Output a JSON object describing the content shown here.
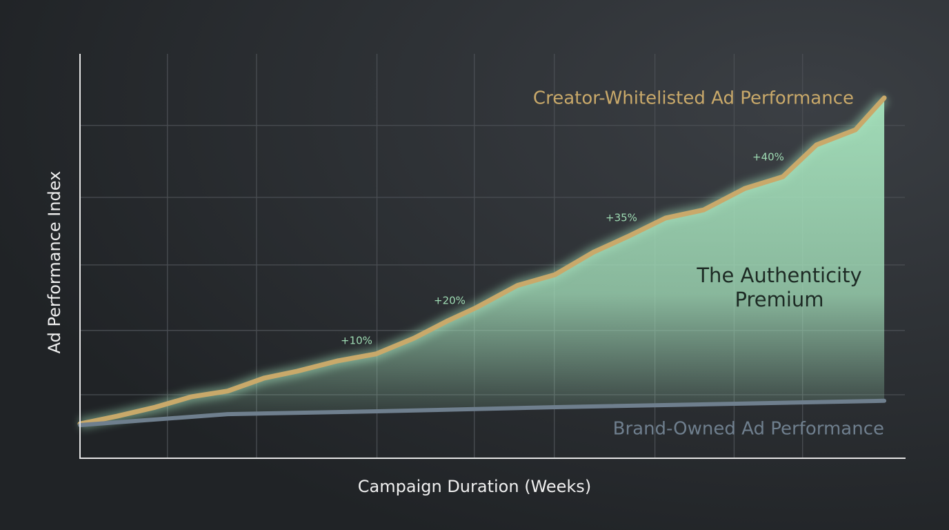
{
  "chart_data": {
    "type": "line",
    "x_label": "Campaign Duration (Weeks)",
    "y_label": "Ad Performance Index",
    "xlim": [
      0,
      100
    ],
    "ylim": [
      0,
      100
    ],
    "xticks": [
      10.6,
      21.4,
      36.0,
      47.8,
      57.5,
      69.7,
      79.3,
      87.6
    ],
    "yticks": [
      15.7,
      31.6,
      47.8,
      64.5,
      82.3
    ],
    "grid": true,
    "series": [
      {
        "name": "Creator-Whitelisted Ad Performance",
        "color": "#c9a96a",
        "x": [
          0,
          4.5,
          9.1,
          13.5,
          17.9,
          22.3,
          26.3,
          31.3,
          35.9,
          40.5,
          44.6,
          48.0,
          53.0,
          57.6,
          62.2,
          66.4,
          71.0,
          75.6,
          80.6,
          85.2,
          89.3,
          94.0,
          97.5
        ],
        "values": [
          8.5,
          10.4,
          12.6,
          15.2,
          16.6,
          19.8,
          21.5,
          24.1,
          25.8,
          29.7,
          34.0,
          37.2,
          42.7,
          45.4,
          50.9,
          54.8,
          59.4,
          61.4,
          66.7,
          69.6,
          77.5,
          81.2,
          89.1
        ]
      },
      {
        "name": "Brand-Owned Ad Performance",
        "color": "#6f7f8e",
        "x": [
          0,
          17.9,
          36.0,
          57.2,
          97.5
        ],
        "values": [
          8.2,
          10.9,
          11.6,
          12.6,
          14.2
        ]
      }
    ],
    "area_color": "#a6e3bd",
    "area_label": [
      "The Authenticity",
      "Premium"
    ],
    "annotations": [
      "+10%",
      "+20%",
      "+35%",
      "+40%"
    ]
  }
}
